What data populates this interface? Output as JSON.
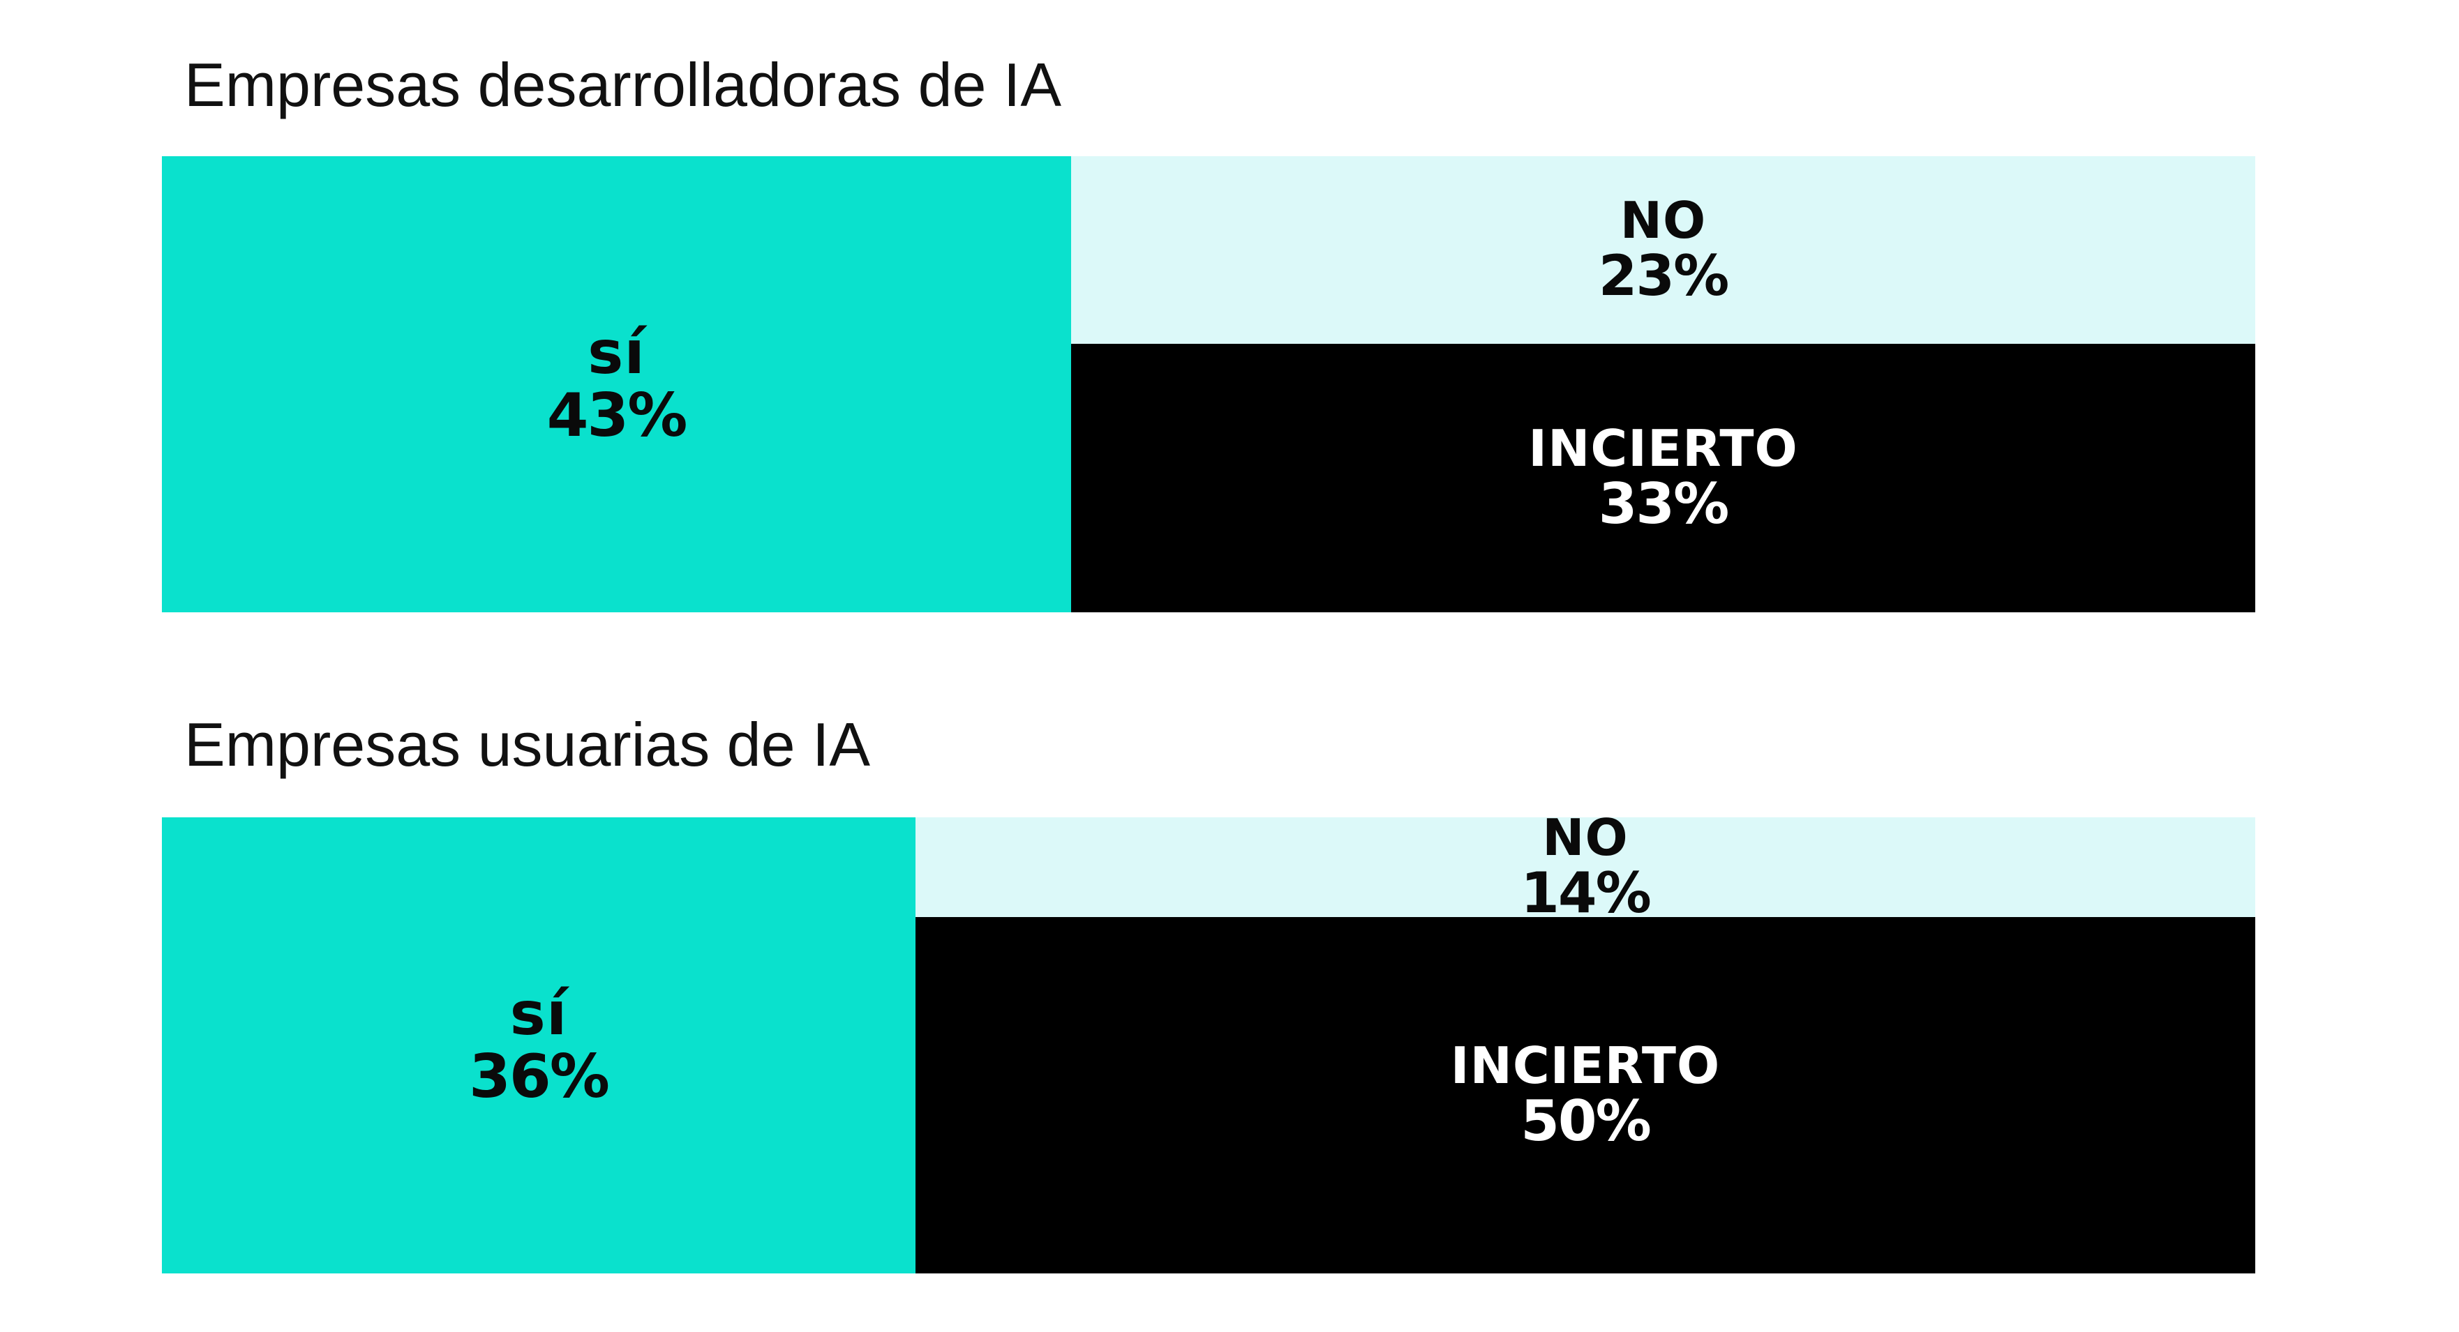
{
  "colors": {
    "si": "#0ae1cd",
    "no": "#dcf9f9",
    "incierto": "#000000",
    "dark_text": "#0a0a0a",
    "light_text": "#ffffff"
  },
  "chart_data": [
    {
      "type": "bar",
      "layout": "mosaic",
      "title": "Empresas desarrolladoras de IA",
      "segments": [
        {
          "name": "sí",
          "label": "sí",
          "value": 43,
          "display": "43%"
        },
        {
          "name": "NO",
          "label": "NO",
          "value": 23,
          "display": "23%"
        },
        {
          "name": "INCIERTO",
          "label": "INCIERTO",
          "value": 33,
          "display": "33%"
        }
      ]
    },
    {
      "type": "bar",
      "layout": "mosaic",
      "title": "Empresas usuarias de IA",
      "segments": [
        {
          "name": "sí",
          "label": "sí",
          "value": 36,
          "display": "36%"
        },
        {
          "name": "NO",
          "label": "NO",
          "value": 14,
          "display": "14%"
        },
        {
          "name": "INCIERTO",
          "label": "INCIERTO",
          "value": 50,
          "display": "50%"
        }
      ]
    }
  ]
}
